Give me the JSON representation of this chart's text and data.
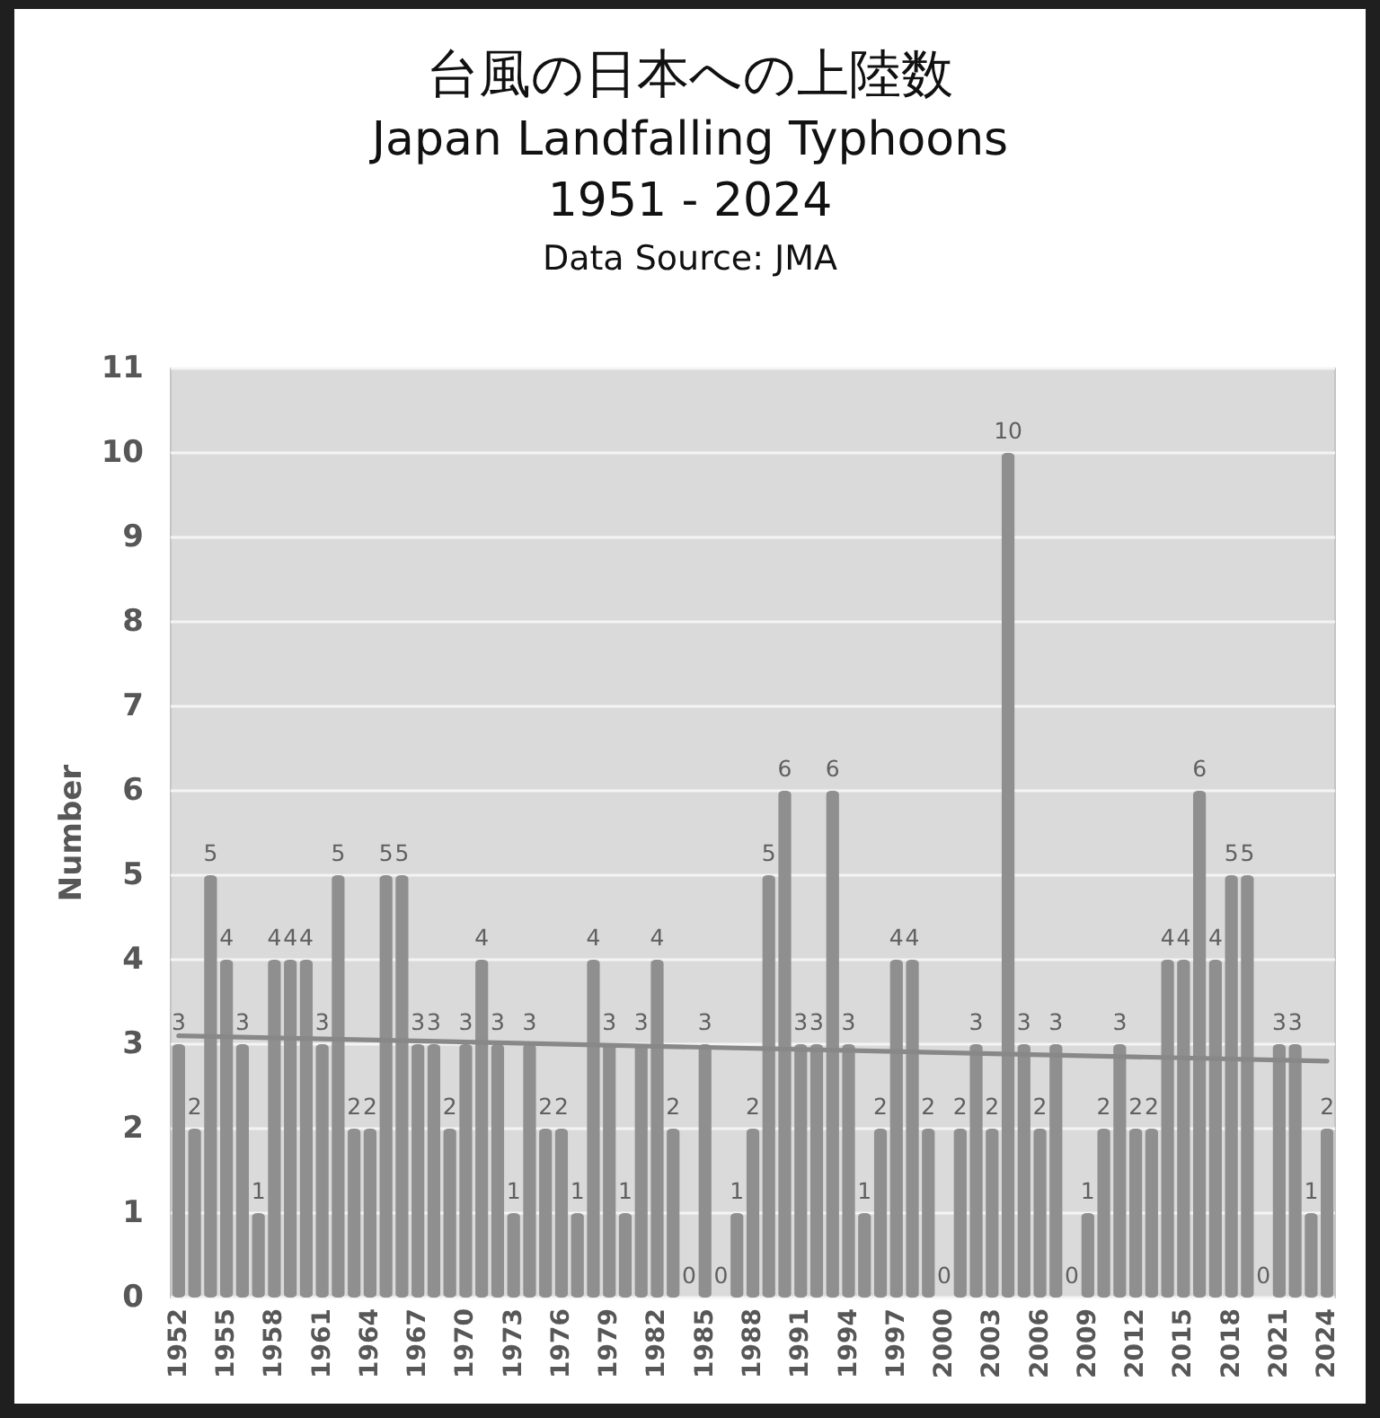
{
  "chart_data": {
    "type": "bar",
    "title": "台風の日本への上陸数",
    "subtitle": "Japan Landfalling Typhoons 1951 - 2024",
    "ylabel": "Number",
    "annotations": [
      "Data Source: JMA"
    ],
    "x": [
      1952,
      1953,
      1954,
      1955,
      1956,
      1957,
      1958,
      1959,
      1960,
      1961,
      1962,
      1963,
      1964,
      1965,
      1966,
      1967,
      1968,
      1969,
      1970,
      1971,
      1972,
      1973,
      1974,
      1975,
      1976,
      1977,
      1978,
      1979,
      1980,
      1981,
      1982,
      1983,
      1984,
      1985,
      1986,
      1987,
      1988,
      1989,
      1990,
      1991,
      1992,
      1993,
      1994,
      1995,
      1996,
      1997,
      1998,
      1999,
      2000,
      2001,
      2002,
      2003,
      2004,
      2005,
      2006,
      2007,
      2008,
      2009,
      2010,
      2011,
      2012,
      2013,
      2014,
      2015,
      2016,
      2017,
      2018,
      2019,
      2020,
      2021,
      2022,
      2023,
      2024
    ],
    "xlim": [
      1951.5,
      2024.5
    ],
    "xticks": [
      1952,
      1955,
      1958,
      1961,
      1964,
      1967,
      1970,
      1973,
      1976,
      1979,
      1982,
      1985,
      1988,
      1991,
      1994,
      1997,
      2000,
      2003,
      2006,
      2009,
      2012,
      2015,
      2018,
      2021,
      2024
    ],
    "ylim": [
      0,
      11
    ],
    "yticks": [
      0,
      1,
      2,
      3,
      4,
      5,
      6,
      7,
      8,
      9,
      10,
      11
    ],
    "grid": "y",
    "series": [
      {
        "color": "#8f8f8f",
        "values": [
          3,
          2,
          5,
          4,
          3,
          1,
          4,
          4,
          4,
          3,
          5,
          2,
          2,
          5,
          5,
          3,
          3,
          2,
          3,
          4,
          3,
          1,
          3,
          2,
          2,
          1,
          4,
          3,
          1,
          3,
          4,
          2,
          0,
          3,
          0,
          1,
          2,
          5,
          6,
          3,
          3,
          6,
          3,
          1,
          2,
          4,
          4,
          2,
          0,
          2,
          3,
          2,
          10,
          3,
          2,
          3,
          0,
          1,
          2,
          3,
          2,
          2,
          4,
          4,
          6,
          4,
          5,
          5,
          0,
          3,
          3,
          1,
          2
        ],
        "value_labels": [
          "3",
          "2",
          "5",
          "4",
          "3",
          "1",
          "4",
          "4",
          "4",
          "3",
          "5",
          "2",
          "2",
          "5",
          "5",
          "3",
          "3",
          "2",
          "3",
          "4",
          "3",
          "1",
          "3",
          "2",
          "2",
          "1",
          "4",
          "3",
          "1",
          "3",
          "4",
          "2",
          "0",
          "3",
          "0",
          "1",
          "2",
          "5",
          "6",
          "3",
          "3",
          "6",
          "3",
          "1",
          "2",
          "4",
          "4",
          "2",
          "0",
          "2",
          "3",
          "2",
          "10",
          "3",
          "2",
          "3",
          "0",
          "1",
          "2",
          "3",
          "2",
          "2",
          "4",
          "4",
          "6",
          "4",
          "5",
          "5",
          "0",
          "3",
          "3",
          "1",
          "2"
        ]
      },
      {
        "type": "line",
        "color": "#888888",
        "x": [
          1952,
          2024
        ],
        "values": [
          3.1,
          2.8
        ]
      }
    ]
  }
}
